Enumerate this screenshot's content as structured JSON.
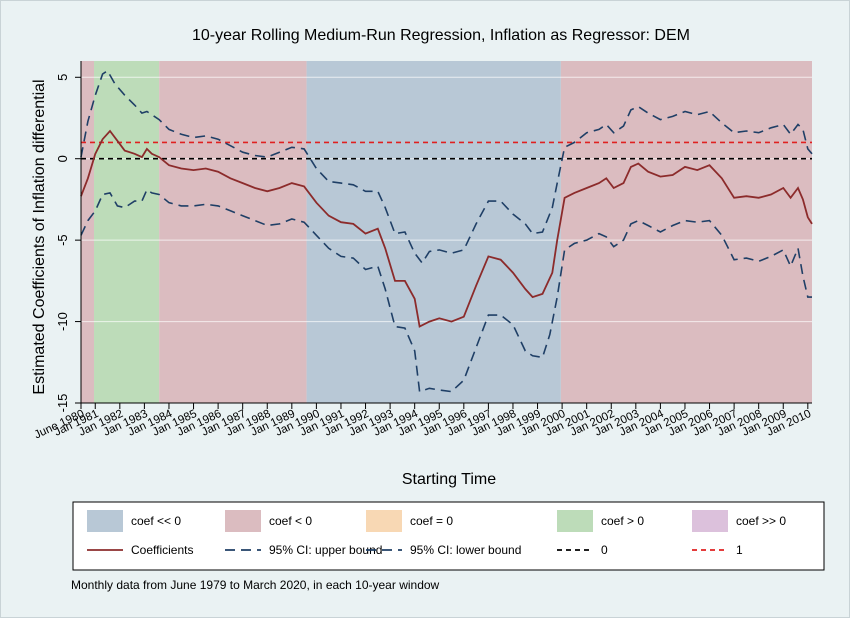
{
  "chart_data": {
    "type": "line",
    "title": "10-year Rolling Medium-Run Regression, Inflation as Regressor: DEM",
    "xlabel": "Starting Time",
    "ylabel": "Estimated Coefficients of Inflation differential",
    "note": "Monthly data from June 1979 to March 2020, in each 10-year window",
    "ylim": [
      -15,
      6
    ],
    "yticks": [
      5,
      0,
      -5,
      -10,
      -15
    ],
    "xlim": [
      1980.42,
      2010.17
    ],
    "xtick_labels": [
      {
        "x": 1980.42,
        "label": "June 1980"
      },
      {
        "x": 1981.0,
        "label": "Jan 1981"
      },
      {
        "x": 1982.0,
        "label": "Jan 1982"
      },
      {
        "x": 1983.0,
        "label": "Jan 1983"
      },
      {
        "x": 1984.0,
        "label": "Jan 1984"
      },
      {
        "x": 1985.0,
        "label": "Jan 1985"
      },
      {
        "x": 1986.0,
        "label": "Jan 1986"
      },
      {
        "x": 1987.0,
        "label": "Jan 1987"
      },
      {
        "x": 1988.0,
        "label": "Jan 1988"
      },
      {
        "x": 1989.0,
        "label": "Jan 1989"
      },
      {
        "x": 1990.0,
        "label": "Jan 1990"
      },
      {
        "x": 1991.0,
        "label": "Jan 1991"
      },
      {
        "x": 1992.0,
        "label": "Jan 1992"
      },
      {
        "x": 1993.0,
        "label": "Jan 1993"
      },
      {
        "x": 1994.0,
        "label": "Jan 1994"
      },
      {
        "x": 1995.0,
        "label": "Jan 1995"
      },
      {
        "x": 1996.0,
        "label": "Jan 1996"
      },
      {
        "x": 1997.0,
        "label": "Jan 1997"
      },
      {
        "x": 1998.0,
        "label": "Jan 1998"
      },
      {
        "x": 1999.0,
        "label": "Jan 1999"
      },
      {
        "x": 2000.0,
        "label": "Jan 2000"
      },
      {
        "x": 2001.0,
        "label": "Jan 2001"
      },
      {
        "x": 2002.0,
        "label": "Jan 2002"
      },
      {
        "x": 2003.0,
        "label": "Jan 2003"
      },
      {
        "x": 2004.0,
        "label": "Jan 2004"
      },
      {
        "x": 2005.0,
        "label": "Jan 2005"
      },
      {
        "x": 2006.0,
        "label": "Jan 2006"
      },
      {
        "x": 2007.0,
        "label": "Jan 2007"
      },
      {
        "x": 2008.0,
        "label": "Jan 2008"
      },
      {
        "x": 2009.0,
        "label": "Jan 2009"
      },
      {
        "x": 2010.0,
        "label": "Jan 2010"
      }
    ],
    "regions": [
      {
        "from": 1980.42,
        "to": 1980.95,
        "category": "coef < 0"
      },
      {
        "from": 1980.95,
        "to": 1983.6,
        "category": "coef > 0"
      },
      {
        "from": 1983.6,
        "to": 1989.6,
        "category": "coef < 0"
      },
      {
        "from": 1989.6,
        "to": 1999.95,
        "category": "coef << 0"
      },
      {
        "from": 1999.95,
        "to": 2010.17,
        "category": "coef < 0"
      }
    ],
    "region_legend": [
      {
        "label": "coef << 0",
        "color": "#b8c8d6"
      },
      {
        "label": "coef < 0",
        "color": "#dbbcc0"
      },
      {
        "label": "coef = 0",
        "color": "#f8d8b4"
      },
      {
        "label": "coef > 0",
        "color": "#bddcb9"
      },
      {
        "label": "coef >> 0",
        "color": "#dcc1dc"
      }
    ],
    "line_legend": [
      {
        "label": "Coefficients",
        "color": "#8c2b2b",
        "style": "solid"
      },
      {
        "label": "95% CI: upper bound",
        "color": "#1f3f66",
        "style": "longdash"
      },
      {
        "label": "95% CI: lower bound",
        "color": "#1f3f66",
        "style": "longdash"
      },
      {
        "label": "0",
        "color": "#000000",
        "style": "shortdash"
      },
      {
        "label": "1",
        "color": "#e02020",
        "style": "shortdash"
      }
    ],
    "reference_lines": [
      0,
      1
    ],
    "series": [
      {
        "name": "Coefficients",
        "points": [
          [
            1980.42,
            -2.3
          ],
          [
            1980.7,
            -1.2
          ],
          [
            1981.0,
            0.3
          ],
          [
            1981.3,
            1.2
          ],
          [
            1981.6,
            1.7
          ],
          [
            1981.9,
            1.1
          ],
          [
            1982.2,
            0.5
          ],
          [
            1982.6,
            0.3
          ],
          [
            1982.9,
            0.1
          ],
          [
            1983.1,
            0.6
          ],
          [
            1983.3,
            0.3
          ],
          [
            1983.6,
            0.1
          ],
          [
            1984.0,
            -0.4
          ],
          [
            1984.5,
            -0.6
          ],
          [
            1985.0,
            -0.7
          ],
          [
            1985.5,
            -0.6
          ],
          [
            1986.0,
            -0.8
          ],
          [
            1986.5,
            -1.2
          ],
          [
            1987.0,
            -1.5
          ],
          [
            1987.5,
            -1.8
          ],
          [
            1988.0,
            -2.0
          ],
          [
            1988.5,
            -1.8
          ],
          [
            1989.0,
            -1.5
          ],
          [
            1989.5,
            -1.7
          ],
          [
            1990.0,
            -2.7
          ],
          [
            1990.5,
            -3.5
          ],
          [
            1991.0,
            -3.9
          ],
          [
            1991.5,
            -4.0
          ],
          [
            1992.0,
            -4.6
          ],
          [
            1992.5,
            -4.3
          ],
          [
            1992.8,
            -5.5
          ],
          [
            1993.2,
            -7.5
          ],
          [
            1993.6,
            -7.5
          ],
          [
            1994.0,
            -8.6
          ],
          [
            1994.2,
            -10.3
          ],
          [
            1994.6,
            -10.0
          ],
          [
            1995.0,
            -9.8
          ],
          [
            1995.5,
            -10.0
          ],
          [
            1996.0,
            -9.7
          ],
          [
            1996.5,
            -7.8
          ],
          [
            1997.0,
            -6.0
          ],
          [
            1997.5,
            -6.2
          ],
          [
            1998.0,
            -7.0
          ],
          [
            1998.5,
            -8.0
          ],
          [
            1998.8,
            -8.5
          ],
          [
            1999.2,
            -8.3
          ],
          [
            1999.6,
            -7.0
          ],
          [
            1999.8,
            -5.0
          ],
          [
            2000.1,
            -2.4
          ],
          [
            2000.5,
            -2.1
          ],
          [
            2001.0,
            -1.8
          ],
          [
            2001.5,
            -1.5
          ],
          [
            2001.8,
            -1.2
          ],
          [
            2002.1,
            -1.8
          ],
          [
            2002.5,
            -1.5
          ],
          [
            2002.8,
            -0.5
          ],
          [
            2003.1,
            -0.3
          ],
          [
            2003.5,
            -0.8
          ],
          [
            2004.0,
            -1.1
          ],
          [
            2004.5,
            -1.0
          ],
          [
            2005.0,
            -0.5
          ],
          [
            2005.5,
            -0.7
          ],
          [
            2006.0,
            -0.4
          ],
          [
            2006.5,
            -1.2
          ],
          [
            2007.0,
            -2.4
          ],
          [
            2007.5,
            -2.3
          ],
          [
            2008.0,
            -2.4
          ],
          [
            2008.5,
            -2.2
          ],
          [
            2009.0,
            -1.8
          ],
          [
            2009.3,
            -2.4
          ],
          [
            2009.6,
            -1.8
          ],
          [
            2009.8,
            -2.5
          ],
          [
            2010.0,
            -3.6
          ],
          [
            2010.17,
            -4.0
          ]
        ]
      },
      {
        "name": "95% CI: upper bound",
        "points": [
          [
            1980.42,
            0.1
          ],
          [
            1980.7,
            2.3
          ],
          [
            1981.0,
            3.9
          ],
          [
            1981.3,
            5.2
          ],
          [
            1981.5,
            5.4
          ],
          [
            1981.8,
            4.6
          ],
          [
            1982.2,
            3.9
          ],
          [
            1982.6,
            3.3
          ],
          [
            1982.9,
            2.8
          ],
          [
            1983.1,
            2.9
          ],
          [
            1983.3,
            2.7
          ],
          [
            1983.6,
            2.4
          ],
          [
            1984.0,
            1.8
          ],
          [
            1984.5,
            1.5
          ],
          [
            1985.0,
            1.3
          ],
          [
            1985.5,
            1.4
          ],
          [
            1986.0,
            1.2
          ],
          [
            1986.5,
            0.8
          ],
          [
            1987.0,
            0.4
          ],
          [
            1987.5,
            0.2
          ],
          [
            1988.0,
            0.1
          ],
          [
            1988.5,
            0.4
          ],
          [
            1989.0,
            0.7
          ],
          [
            1989.5,
            0.6
          ],
          [
            1990.0,
            -0.6
          ],
          [
            1990.5,
            -1.4
          ],
          [
            1991.0,
            -1.5
          ],
          [
            1991.5,
            -1.6
          ],
          [
            1992.0,
            -2.0
          ],
          [
            1992.5,
            -2.0
          ],
          [
            1992.8,
            -3.0
          ],
          [
            1993.2,
            -4.6
          ],
          [
            1993.6,
            -4.5
          ],
          [
            1994.0,
            -5.8
          ],
          [
            1994.3,
            -6.4
          ],
          [
            1994.6,
            -5.7
          ],
          [
            1995.0,
            -5.6
          ],
          [
            1995.5,
            -5.8
          ],
          [
            1996.0,
            -5.6
          ],
          [
            1996.5,
            -4.0
          ],
          [
            1997.0,
            -2.6
          ],
          [
            1997.5,
            -2.6
          ],
          [
            1998.0,
            -3.4
          ],
          [
            1998.5,
            -4.0
          ],
          [
            1998.8,
            -4.6
          ],
          [
            1999.2,
            -4.5
          ],
          [
            1999.6,
            -3.0
          ],
          [
            1999.8,
            -1.5
          ],
          [
            2000.1,
            0.7
          ],
          [
            2000.5,
            1.0
          ],
          [
            2001.0,
            1.6
          ],
          [
            2001.5,
            1.8
          ],
          [
            2001.8,
            2.1
          ],
          [
            2002.1,
            1.6
          ],
          [
            2002.5,
            2.0
          ],
          [
            2002.8,
            3.0
          ],
          [
            2003.1,
            3.2
          ],
          [
            2003.5,
            2.8
          ],
          [
            2004.0,
            2.4
          ],
          [
            2004.5,
            2.6
          ],
          [
            2005.0,
            2.9
          ],
          [
            2005.5,
            2.7
          ],
          [
            2006.0,
            2.9
          ],
          [
            2006.5,
            2.2
          ],
          [
            2007.0,
            1.6
          ],
          [
            2007.5,
            1.7
          ],
          [
            2008.0,
            1.6
          ],
          [
            2008.5,
            1.9
          ],
          [
            2009.0,
            2.1
          ],
          [
            2009.3,
            1.5
          ],
          [
            2009.6,
            2.1
          ],
          [
            2009.8,
            1.8
          ],
          [
            2010.0,
            0.6
          ],
          [
            2010.17,
            0.3
          ]
        ]
      },
      {
        "name": "95% CI: lower bound",
        "points": [
          [
            1980.42,
            -4.7
          ],
          [
            1980.7,
            -3.8
          ],
          [
            1981.0,
            -3.2
          ],
          [
            1981.3,
            -2.2
          ],
          [
            1981.6,
            -2.1
          ],
          [
            1981.9,
            -2.9
          ],
          [
            1982.2,
            -3.0
          ],
          [
            1982.6,
            -2.6
          ],
          [
            1982.9,
            -2.6
          ],
          [
            1983.1,
            -1.9
          ],
          [
            1983.3,
            -2.1
          ],
          [
            1983.6,
            -2.2
          ],
          [
            1984.0,
            -2.7
          ],
          [
            1984.5,
            -2.9
          ],
          [
            1985.0,
            -2.9
          ],
          [
            1985.5,
            -2.8
          ],
          [
            1986.0,
            -2.9
          ],
          [
            1986.5,
            -3.2
          ],
          [
            1987.0,
            -3.5
          ],
          [
            1987.5,
            -3.8
          ],
          [
            1988.0,
            -4.1
          ],
          [
            1988.5,
            -4.0
          ],
          [
            1989.0,
            -3.7
          ],
          [
            1989.5,
            -3.9
          ],
          [
            1990.0,
            -4.7
          ],
          [
            1990.5,
            -5.5
          ],
          [
            1991.0,
            -6.0
          ],
          [
            1991.5,
            -6.1
          ],
          [
            1992.0,
            -6.8
          ],
          [
            1992.5,
            -6.6
          ],
          [
            1992.8,
            -8.0
          ],
          [
            1993.2,
            -10.3
          ],
          [
            1993.6,
            -10.4
          ],
          [
            1994.0,
            -11.8
          ],
          [
            1994.2,
            -14.3
          ],
          [
            1994.6,
            -14.1
          ],
          [
            1995.0,
            -14.2
          ],
          [
            1995.5,
            -14.3
          ],
          [
            1996.0,
            -13.6
          ],
          [
            1996.5,
            -11.6
          ],
          [
            1997.0,
            -9.6
          ],
          [
            1997.5,
            -9.6
          ],
          [
            1998.0,
            -10.2
          ],
          [
            1998.5,
            -11.8
          ],
          [
            1998.8,
            -12.1
          ],
          [
            1999.2,
            -12.2
          ],
          [
            1999.5,
            -10.8
          ],
          [
            1999.8,
            -8.5
          ],
          [
            2000.1,
            -5.6
          ],
          [
            2000.5,
            -5.2
          ],
          [
            2001.0,
            -5.0
          ],
          [
            2001.5,
            -4.6
          ],
          [
            2001.8,
            -4.8
          ],
          [
            2002.1,
            -5.4
          ],
          [
            2002.5,
            -5.0
          ],
          [
            2002.8,
            -4.0
          ],
          [
            2003.1,
            -3.8
          ],
          [
            2003.5,
            -4.1
          ],
          [
            2004.0,
            -4.5
          ],
          [
            2004.5,
            -4.1
          ],
          [
            2005.0,
            -3.8
          ],
          [
            2005.5,
            -3.9
          ],
          [
            2006.0,
            -3.8
          ],
          [
            2006.5,
            -4.7
          ],
          [
            2007.0,
            -6.2
          ],
          [
            2007.5,
            -6.1
          ],
          [
            2008.0,
            -6.3
          ],
          [
            2008.5,
            -6.0
          ],
          [
            2009.0,
            -5.6
          ],
          [
            2009.3,
            -6.6
          ],
          [
            2009.6,
            -5.5
          ],
          [
            2009.8,
            -7.2
          ],
          [
            2010.0,
            -8.5
          ],
          [
            2010.17,
            -8.5
          ]
        ]
      }
    ]
  }
}
